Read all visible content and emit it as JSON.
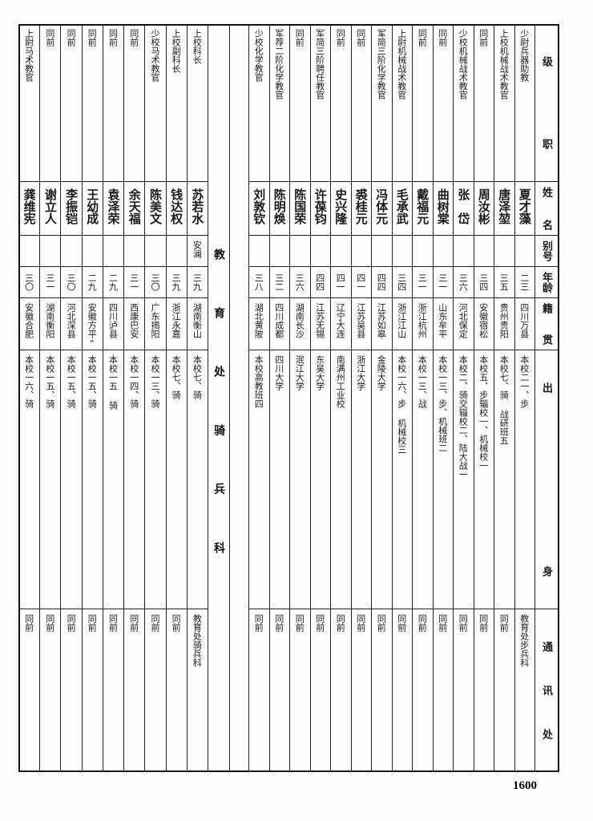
{
  "headers": {
    "rank": "级职",
    "name": "姓名",
    "alias": "别号",
    "age": "年龄",
    "hometown": "籍贯",
    "education": "出身",
    "address": "通讯处"
  },
  "section_title": "教育处骑兵科",
  "page_number": "1600",
  "right": {
    "rows": [
      {
        "rank": "少尉兵器助教",
        "name": "夏才藻",
        "alias": "",
        "age": "二三",
        "hometown": "四川万县",
        "education": "本校二一、步",
        "address": "教育处步兵科"
      },
      {
        "rank": "上校机械战术教官",
        "name": "唐泽堃",
        "alias": "",
        "age": "三五",
        "hometown": "贵州贵阳",
        "education": "本校七、骑 战研班五",
        "address": "同前"
      },
      {
        "rank": "同前",
        "name": "周汝彬",
        "alias": "",
        "age": "三四",
        "hometown": "安徽宿松",
        "education": "本校五、步辎校一、机械校一",
        "address": "同前"
      },
      {
        "rank": "少校机械战术教官",
        "name": "张　岱",
        "alias": "",
        "age": "三六",
        "hometown": "河北保定",
        "education": "本校二、骑交辎校二、陆大战一",
        "address": "同前"
      },
      {
        "rank": "同前",
        "name": "曲树棠",
        "alias": "",
        "age": "三一",
        "hometown": "山东牟平",
        "education": "本校一三、步、机械班二",
        "address": "同前"
      },
      {
        "rank": "同前",
        "name": "戴福元",
        "alias": "",
        "age": "三一",
        "hometown": "浙江杭州",
        "education": "本校一三、战",
        "address": "同前"
      },
      {
        "rank": "上尉机械战术教官",
        "name": "毛承武",
        "alias": "",
        "age": "三四",
        "hometown": "浙江江山",
        "education": "本校一六、步 机械校三",
        "address": "同前"
      },
      {
        "rank": "军简三阶化学教官",
        "name": "冯体元",
        "alias": "",
        "age": "四四",
        "hometown": "江苏如皋",
        "education": "金陵大学",
        "address": "同前"
      },
      {
        "rank": "同前",
        "name": "裘桂元",
        "alias": "",
        "age": "四一",
        "hometown": "江苏吴县",
        "education": "浙江大学",
        "address": "同前"
      },
      {
        "rank": "同前",
        "name": "史兴隆",
        "alias": "",
        "age": "四一",
        "hometown": "辽宁大连",
        "education": "南满州工业校",
        "address": "同前"
      },
      {
        "rank": "军简三阶聘任教官",
        "name": "许葆钧",
        "alias": "",
        "age": "四四",
        "hometown": "江苏无锡",
        "education": "东吴大学",
        "address": "同前"
      },
      {
        "rank": "同前",
        "name": "陈国荣",
        "alias": "",
        "age": "三六",
        "hometown": "湖南长沙",
        "education": "泯江大学",
        "address": "同前"
      },
      {
        "rank": "军荐二阶化学教官",
        "name": "陈明焕",
        "alias": "",
        "age": "三二",
        "hometown": "四川成都",
        "education": "四川大学",
        "address": "同前"
      },
      {
        "rank": "少校化学教官",
        "name": "刘敦钦",
        "alias": "",
        "age": "三八",
        "hometown": "湖北黄陂",
        "education": "本校高教班四",
        "address": "同前"
      }
    ]
  },
  "left": {
    "rows": [
      {
        "rank": "上校科长",
        "name": "苏若水",
        "alias": "安澜",
        "age": "三九",
        "hometown": "湖南衡山",
        "education": "本校七、骑",
        "address": "教育处骑兵科"
      },
      {
        "rank": "上校副科长",
        "name": "钱达权",
        "alias": "",
        "age": "三九",
        "hometown": "浙江永嘉",
        "education": "本校七、骑",
        "address": "同前"
      },
      {
        "rank": "少校马术教官",
        "name": "陈美文",
        "alias": "",
        "age": "三〇",
        "hometown": "广东揭阳",
        "education": "本校一三、骑",
        "address": "同前"
      },
      {
        "rank": "同前",
        "name": "余天福",
        "alias": "",
        "age": "三一",
        "hometown": "西康巴安",
        "education": "本校一四、骑",
        "address": "同前"
      },
      {
        "rank": "同前",
        "name": "袁泽荣",
        "alias": "",
        "age": "二九",
        "hometown": "四川泸县",
        "education": "本校一五 骑",
        "address": "同前"
      },
      {
        "rank": "同前",
        "name": "王幼成",
        "alias": "",
        "age": "二九",
        "hometown": "安徽方平\"",
        "education": "本校一五、骑",
        "address": "同前"
      },
      {
        "rank": "同前",
        "name": "李振铠",
        "alias": "",
        "age": "三〇",
        "hometown": "河北深县",
        "education": "本校一五、骑",
        "address": "同前"
      },
      {
        "rank": "同前",
        "name": "谢立人",
        "alias": "",
        "age": "三一",
        "hometown": "湖南衡阳",
        "education": "本校一五、骑",
        "address": "同前"
      },
      {
        "rank": "上尉马术教官",
        "name": "龚维宪",
        "alias": "",
        "age": "三〇",
        "hometown": "安徽合肥",
        "education": "本校一六、骑",
        "address": "同前"
      }
    ]
  }
}
